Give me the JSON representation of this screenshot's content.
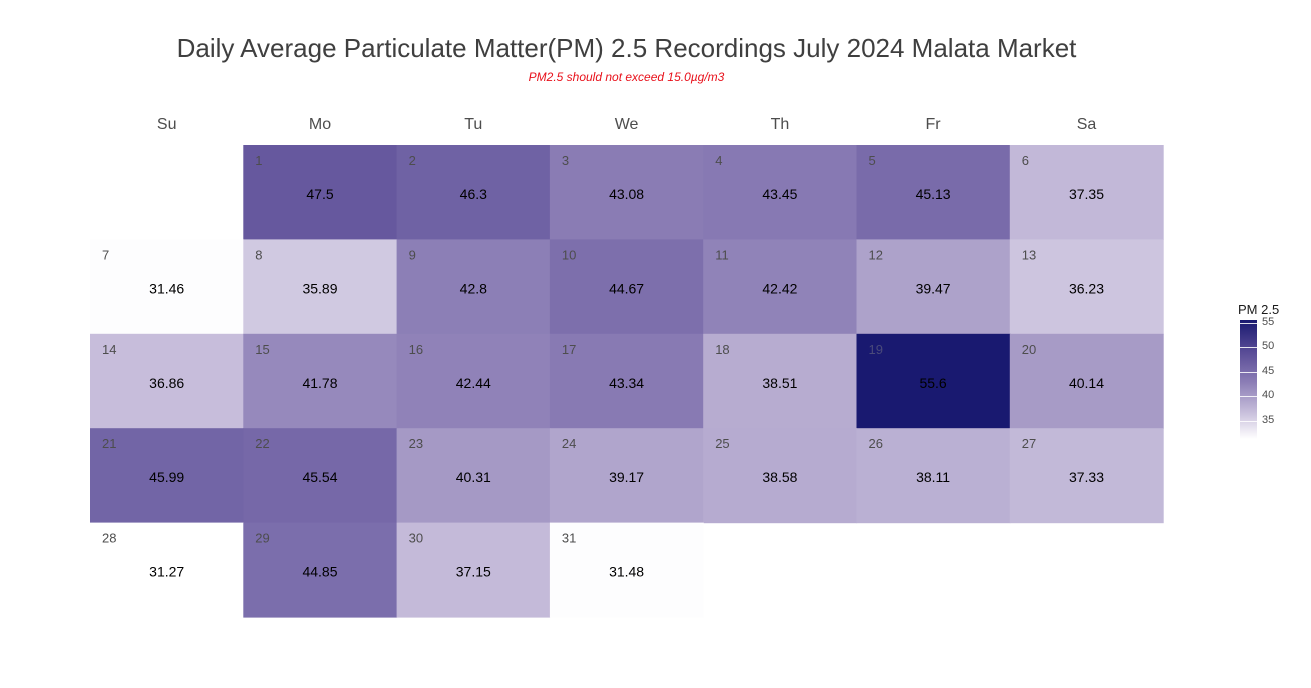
{
  "chart_data": {
    "type": "heatmap",
    "title": "Daily Average Particulate Matter(PM) 2.5 Recordings July 2024 Malata Market",
    "subtitle": "PM2.5 should not exceed 15.0µg/m3",
    "weekdays": [
      "Su",
      "Mo",
      "Tu",
      "We",
      "Th",
      "Fr",
      "Sa"
    ],
    "first_weekday_index": 1,
    "days": [
      1,
      2,
      3,
      4,
      5,
      6,
      7,
      8,
      9,
      10,
      11,
      12,
      13,
      14,
      15,
      16,
      17,
      18,
      19,
      20,
      21,
      22,
      23,
      24,
      25,
      26,
      27,
      28,
      29,
      30,
      31
    ],
    "values": [
      47.5,
      46.3,
      43.08,
      43.45,
      45.13,
      37.35,
      31.46,
      35.89,
      42.8,
      44.67,
      42.42,
      39.47,
      36.23,
      36.86,
      41.78,
      42.44,
      43.34,
      38.51,
      55.6,
      40.14,
      45.99,
      45.54,
      40.31,
      39.17,
      38.58,
      38.11,
      37.33,
      31.27,
      44.85,
      37.15,
      31.48
    ],
    "legend": {
      "title": "PM 2.5",
      "ticks": [
        55,
        50,
        45,
        40,
        35
      ],
      "range": [
        31.27,
        55.6
      ],
      "low_color": "#ffffff",
      "high_color": "#191970",
      "placement": "right"
    }
  }
}
